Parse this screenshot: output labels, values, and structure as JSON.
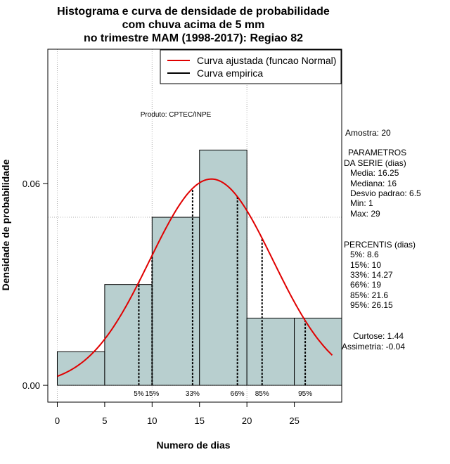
{
  "chart_data": {
    "type": "bar",
    "title_lines": [
      "Histograma e curva de densidade de probabilidade",
      "com chuva acima de 5 mm",
      "no trimestre MAM (1998-2017): Regiao 82"
    ],
    "xlabel": "Numero de dias",
    "ylabel": "Densidade de probabilidade",
    "xlim": [
      -1,
      30
    ],
    "ylim": [
      -0.005,
      0.1
    ],
    "x_ticks": [
      0,
      5,
      10,
      15,
      20,
      25
    ],
    "y_ticks": [
      0.0,
      0.06
    ],
    "y_tick_labels": [
      "0.00",
      "0.06"
    ],
    "bins": [
      {
        "x0": 0,
        "x1": 5,
        "density": 0.01
      },
      {
        "x0": 5,
        "x1": 10,
        "density": 0.03
      },
      {
        "x0": 10,
        "x1": 15,
        "density": 0.05
      },
      {
        "x0": 15,
        "x1": 20,
        "density": 0.07
      },
      {
        "x0": 20,
        "x1": 25,
        "density": 0.02
      },
      {
        "x0": 25,
        "x1": 30,
        "density": 0.02
      }
    ],
    "normal_curve": {
      "mean": 16.25,
      "sd": 6.5,
      "x_from": 0,
      "x_to": 29,
      "color": "#e00000"
    },
    "bar_color": "#b8cfcf",
    "grid_x": [
      0,
      10,
      20
    ],
    "grid_y": [
      0.05,
      0.1
    ],
    "percentile_lines": [
      {
        "label": "5%",
        "x": 8.6
      },
      {
        "label": "15%",
        "x": 10
      },
      {
        "label": "33%",
        "x": 14.27
      },
      {
        "label": "66%",
        "x": 19
      },
      {
        "label": "85%",
        "x": 21.6
      },
      {
        "label": "95%",
        "x": 26.15
      }
    ],
    "legend": [
      {
        "label": "Curva ajustada (funcao Normal)",
        "color": "#e00000"
      },
      {
        "label": "Curva empirica",
        "color": "#000000"
      }
    ],
    "legend_position": "top-right",
    "credit": "Produto: CPTEC/INPE"
  },
  "side_panel": {
    "sample": "Amostra: 20",
    "params_title_1": "PARAMETROS",
    "params_title_2": "DA SERIE (dias)",
    "params": [
      "Media: 16.25",
      "Mediana: 16",
      "Desvio padrao: 6.5",
      "Min: 1",
      "Max: 29"
    ],
    "percentis_title": "PERCENTIS (dias)",
    "percentis": [
      "5%: 8.6",
      "15%: 10",
      "33%: 14.27",
      "66%: 19",
      "85%: 21.6",
      "95%: 26.15"
    ],
    "kurtosis": "Curtose: 1.44",
    "skewness": "Assimetria: -0.04"
  }
}
